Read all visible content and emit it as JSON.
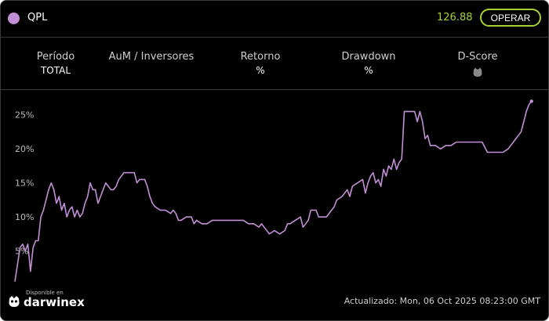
{
  "header": {
    "symbol": "QPL",
    "price": "126.88",
    "operate_label": "OPERAR"
  },
  "stats": [
    {
      "label": "Período",
      "value": "TOTAL"
    },
    {
      "label": "AuM / Inversores",
      "value": ""
    },
    {
      "label": "Retorno",
      "value": "%"
    },
    {
      "label": "Drawdown",
      "value": "%"
    },
    {
      "label": "D-Score",
      "value": "",
      "icon": "owl-icon"
    }
  ],
  "footer": {
    "available_on": "Disponible en",
    "brand": "darwinex",
    "updated": "Actualizado: Mon, 06 Oct 2025 08:23:00 GMT"
  },
  "colors": {
    "series": "#c28fd6",
    "accent": "#a6d234",
    "background": "#000000"
  },
  "chart_data": {
    "type": "line",
    "yticks": [
      "5%",
      "10%",
      "15%",
      "20%",
      "25%"
    ],
    "ylim": [
      0,
      27.5
    ],
    "xlim": [
      0,
      100
    ],
    "grid": false,
    "series": [
      {
        "values": [
          [
            0,
            0.5
          ],
          [
            0.5,
            3
          ],
          [
            1,
            5.5
          ],
          [
            1.5,
            6
          ],
          [
            2,
            5
          ],
          [
            2.5,
            6
          ],
          [
            3,
            2
          ],
          [
            3.5,
            5.5
          ],
          [
            4,
            6.5
          ],
          [
            4.5,
            6.5
          ],
          [
            5,
            10
          ],
          [
            5.5,
            11
          ],
          [
            6,
            12.5
          ],
          [
            6.5,
            14
          ],
          [
            7,
            15
          ],
          [
            7.5,
            14
          ],
          [
            8,
            12
          ],
          [
            8.5,
            13
          ],
          [
            9,
            11
          ],
          [
            9.5,
            12
          ],
          [
            10,
            10
          ],
          [
            10.5,
            11
          ],
          [
            11,
            11.5
          ],
          [
            11.5,
            10
          ],
          [
            12,
            11
          ],
          [
            12.5,
            10
          ],
          [
            13,
            10.5
          ],
          [
            13.5,
            12
          ],
          [
            14,
            13
          ],
          [
            14.5,
            15
          ],
          [
            15,
            14
          ],
          [
            15.5,
            14
          ],
          [
            16,
            12
          ],
          [
            16.5,
            13
          ],
          [
            17,
            14
          ],
          [
            17.5,
            15
          ],
          [
            18,
            14.5
          ],
          [
            18.5,
            14
          ],
          [
            19,
            14
          ],
          [
            19.5,
            14.5
          ],
          [
            20,
            15.5
          ],
          [
            21,
            16.5
          ],
          [
            22,
            16.5
          ],
          [
            23,
            16.5
          ],
          [
            23.5,
            15
          ],
          [
            24,
            15.5
          ],
          [
            25,
            15.5
          ],
          [
            25.5,
            14.5
          ],
          [
            26,
            13
          ],
          [
            26.5,
            12
          ],
          [
            27,
            11.5
          ],
          [
            28,
            11
          ],
          [
            29,
            11
          ],
          [
            30,
            10.5
          ],
          [
            30.5,
            11
          ],
          [
            31,
            10.5
          ],
          [
            31.5,
            9.5
          ],
          [
            32,
            9.5
          ],
          [
            33,
            10
          ],
          [
            34,
            10
          ],
          [
            34.5,
            9
          ],
          [
            35,
            9.5
          ],
          [
            36,
            9
          ],
          [
            37,
            9
          ],
          [
            38,
            9.5
          ],
          [
            39,
            9.5
          ],
          [
            40,
            9.5
          ],
          [
            41,
            9.5
          ],
          [
            42,
            9.5
          ],
          [
            43,
            9.5
          ],
          [
            44,
            9.5
          ],
          [
            45,
            9
          ],
          [
            46,
            9
          ],
          [
            47,
            8.5
          ],
          [
            47.5,
            9
          ],
          [
            48,
            8.5
          ],
          [
            49,
            7.5
          ],
          [
            50,
            8
          ],
          [
            51,
            7.5
          ],
          [
            52,
            8
          ],
          [
            52.5,
            9
          ],
          [
            53,
            9
          ],
          [
            54,
            9.5
          ],
          [
            55,
            10
          ],
          [
            55.5,
            8.5
          ],
          [
            56,
            9
          ],
          [
            56.5,
            9.5
          ],
          [
            57,
            11
          ],
          [
            58,
            11
          ],
          [
            58.5,
            10
          ],
          [
            59,
            10
          ],
          [
            60,
            10
          ],
          [
            61,
            11
          ],
          [
            61.5,
            11.5
          ],
          [
            62,
            12.5
          ],
          [
            63,
            13
          ],
          [
            64,
            14
          ],
          [
            64.5,
            13
          ],
          [
            65,
            14.5
          ],
          [
            66,
            15
          ],
          [
            67,
            15.5
          ],
          [
            67.5,
            13.5
          ],
          [
            68,
            15
          ],
          [
            68.5,
            16
          ],
          [
            69,
            16.5
          ],
          [
            69.5,
            15
          ],
          [
            70,
            15.5
          ],
          [
            70.5,
            14.5
          ],
          [
            71,
            17
          ],
          [
            71.5,
            16
          ],
          [
            72,
            17.5
          ],
          [
            72.5,
            17
          ],
          [
            73,
            18.5
          ],
          [
            73.5,
            17
          ],
          [
            74,
            18
          ],
          [
            74.5,
            18.5
          ],
          [
            75,
            25.5
          ],
          [
            76,
            25.5
          ],
          [
            77,
            25.5
          ],
          [
            77.5,
            24
          ],
          [
            78,
            25.5
          ],
          [
            78.5,
            24
          ],
          [
            79,
            21.5
          ],
          [
            79.5,
            22
          ],
          [
            80,
            20.5
          ],
          [
            81,
            20.5
          ],
          [
            82,
            20
          ],
          [
            83,
            20.5
          ],
          [
            84,
            20.5
          ],
          [
            85,
            21
          ],
          [
            86,
            21
          ],
          [
            87,
            21
          ],
          [
            88,
            21
          ],
          [
            89,
            21
          ],
          [
            90,
            21
          ],
          [
            91,
            19.5
          ],
          [
            92,
            19.5
          ],
          [
            93,
            19.5
          ],
          [
            94,
            19.5
          ],
          [
            95,
            20
          ],
          [
            96,
            21
          ],
          [
            96.5,
            21.5
          ],
          [
            97,
            22
          ],
          [
            97.5,
            22.5
          ],
          [
            98,
            24
          ],
          [
            98.5,
            25.5
          ],
          [
            99,
            26.5
          ],
          [
            99.5,
            27
          ]
        ]
      }
    ]
  }
}
